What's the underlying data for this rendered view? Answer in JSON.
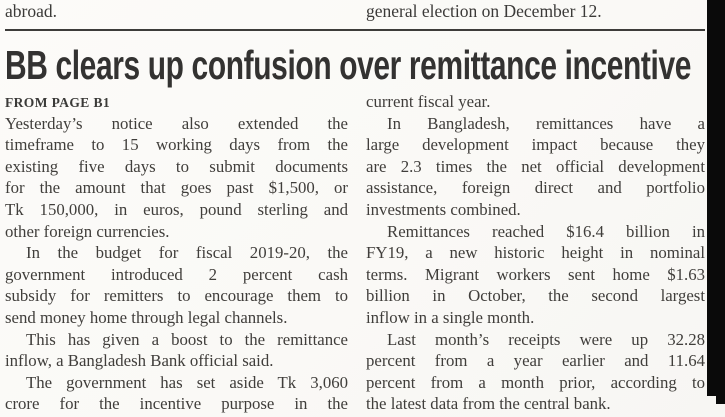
{
  "page": {
    "background_color": "#fbfaf7",
    "ink_color": "#403e3b",
    "headline_color": "#333231",
    "strip_color": "#0a0a0a"
  },
  "top_continuation": {
    "left_fragment": "abroad.",
    "right_fragment": "general election on December 12."
  },
  "article": {
    "headline": "BB clears up confusion over remittance incentive",
    "kicker": "FROM PAGE B1",
    "columns": {
      "left": [
        "Yesterday’s notice also extended the",
        "timeframe to 15 working days from the",
        "existing five days to submit documents",
        "for the amount that goes past $1,500, or",
        "Tk 150,000, in euros, pound sterling and",
        "other foreign currencies.",
        "In the budget for fiscal 2019-20, the",
        "government introduced 2 percent cash",
        "subsidy for remitters to encourage them to",
        "send money home through legal channels.",
        "This has given a boost to the remittance",
        "inflow, a Bangladesh Bank official said.",
        "The government has set aside Tk 3,060",
        "crore for the incentive purpose in the"
      ],
      "right": [
        "current fiscal year.",
        "In Bangladesh, remittances have a",
        "large development impact because they",
        "are 2.3 times the net official development",
        "assistance, foreign direct and portfolio",
        "investments combined.",
        "Remittances reached $16.4 billion in",
        "FY19, a new historic height in nominal",
        "terms. Migrant workers sent home $1.63",
        "billion in October, the second largest",
        "inflow in a single month.",
        "Last month’s receipts were up 32.28",
        "percent from a year earlier and 11.64",
        "percent from a month prior, according to",
        "the latest data from the central bank."
      ]
    }
  }
}
